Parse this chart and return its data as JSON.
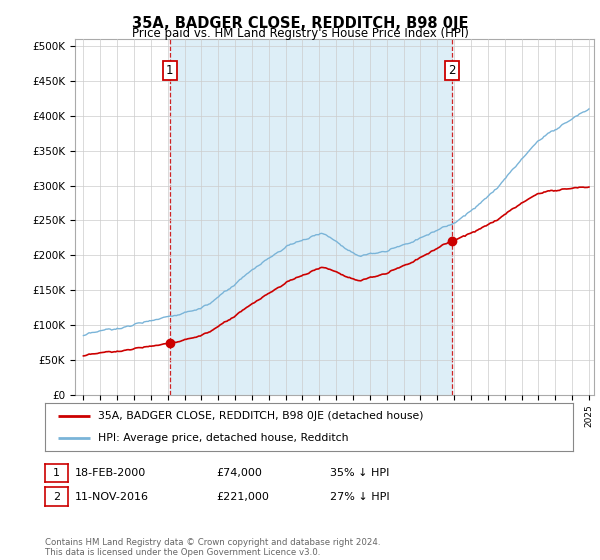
{
  "title": "35A, BADGER CLOSE, REDDITCH, B98 0JE",
  "subtitle": "Price paid vs. HM Land Registry's House Price Index (HPI)",
  "ylabel_ticks": [
    "£0",
    "£50K",
    "£100K",
    "£150K",
    "£200K",
    "£250K",
    "£300K",
    "£350K",
    "£400K",
    "£450K",
    "£500K"
  ],
  "ytick_values": [
    0,
    50000,
    100000,
    150000,
    200000,
    250000,
    300000,
    350000,
    400000,
    450000,
    500000
  ],
  "ylim": [
    0,
    510000
  ],
  "hpi_color": "#7ab4d8",
  "hpi_fill_color": "#ddeef7",
  "property_color": "#cc0000",
  "marker1_date": 2000.13,
  "marker1_value": 74000,
  "marker2_date": 2016.87,
  "marker2_value": 221000,
  "annotation1_label": "1",
  "annotation2_label": "2",
  "vline_color": "#cc0000",
  "legend_property": "35A, BADGER CLOSE, REDDITCH, B98 0JE (detached house)",
  "legend_hpi": "HPI: Average price, detached house, Redditch",
  "table_row1": [
    "1",
    "18-FEB-2000",
    "£74,000",
    "35% ↓ HPI"
  ],
  "table_row2": [
    "2",
    "11-NOV-2016",
    "£221,000",
    "27% ↓ HPI"
  ],
  "footer": "Contains HM Land Registry data © Crown copyright and database right 2024.\nThis data is licensed under the Open Government Licence v3.0.",
  "background_color": "#ffffff",
  "grid_color": "#cccccc"
}
